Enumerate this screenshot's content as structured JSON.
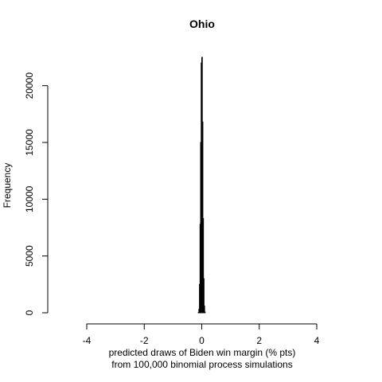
{
  "chart_data": {
    "type": "bar",
    "title": "Ohio",
    "xlabel": "predicted draws of Biden win margin (% pts)",
    "xlabel_line2": "from 100,000 binomial process simulations",
    "ylabel": "Frequency",
    "xlim": [
      -4,
      4
    ],
    "ylim": [
      0,
      22500
    ],
    "x_ticks": [
      "-4",
      "-2",
      "0",
      "2",
      "4"
    ],
    "y_ticks": [
      "0",
      "5000",
      "10000",
      "15000",
      "20000"
    ],
    "bin_width": 0.02,
    "bins": [
      {
        "x0": -0.12,
        "count": 30
      },
      {
        "x0": -0.1,
        "count": 300
      },
      {
        "x0": -0.08,
        "count": 2500
      },
      {
        "x0": -0.06,
        "count": 7800
      },
      {
        "x0": -0.04,
        "count": 15000
      },
      {
        "x0": -0.02,
        "count": 22000
      },
      {
        "x0": 0.0,
        "count": 22500
      },
      {
        "x0": 0.02,
        "count": 16800
      },
      {
        "x0": 0.04,
        "count": 8300
      },
      {
        "x0": 0.06,
        "count": 3000
      },
      {
        "x0": 0.08,
        "count": 600
      },
      {
        "x0": 0.1,
        "count": 60
      }
    ]
  }
}
